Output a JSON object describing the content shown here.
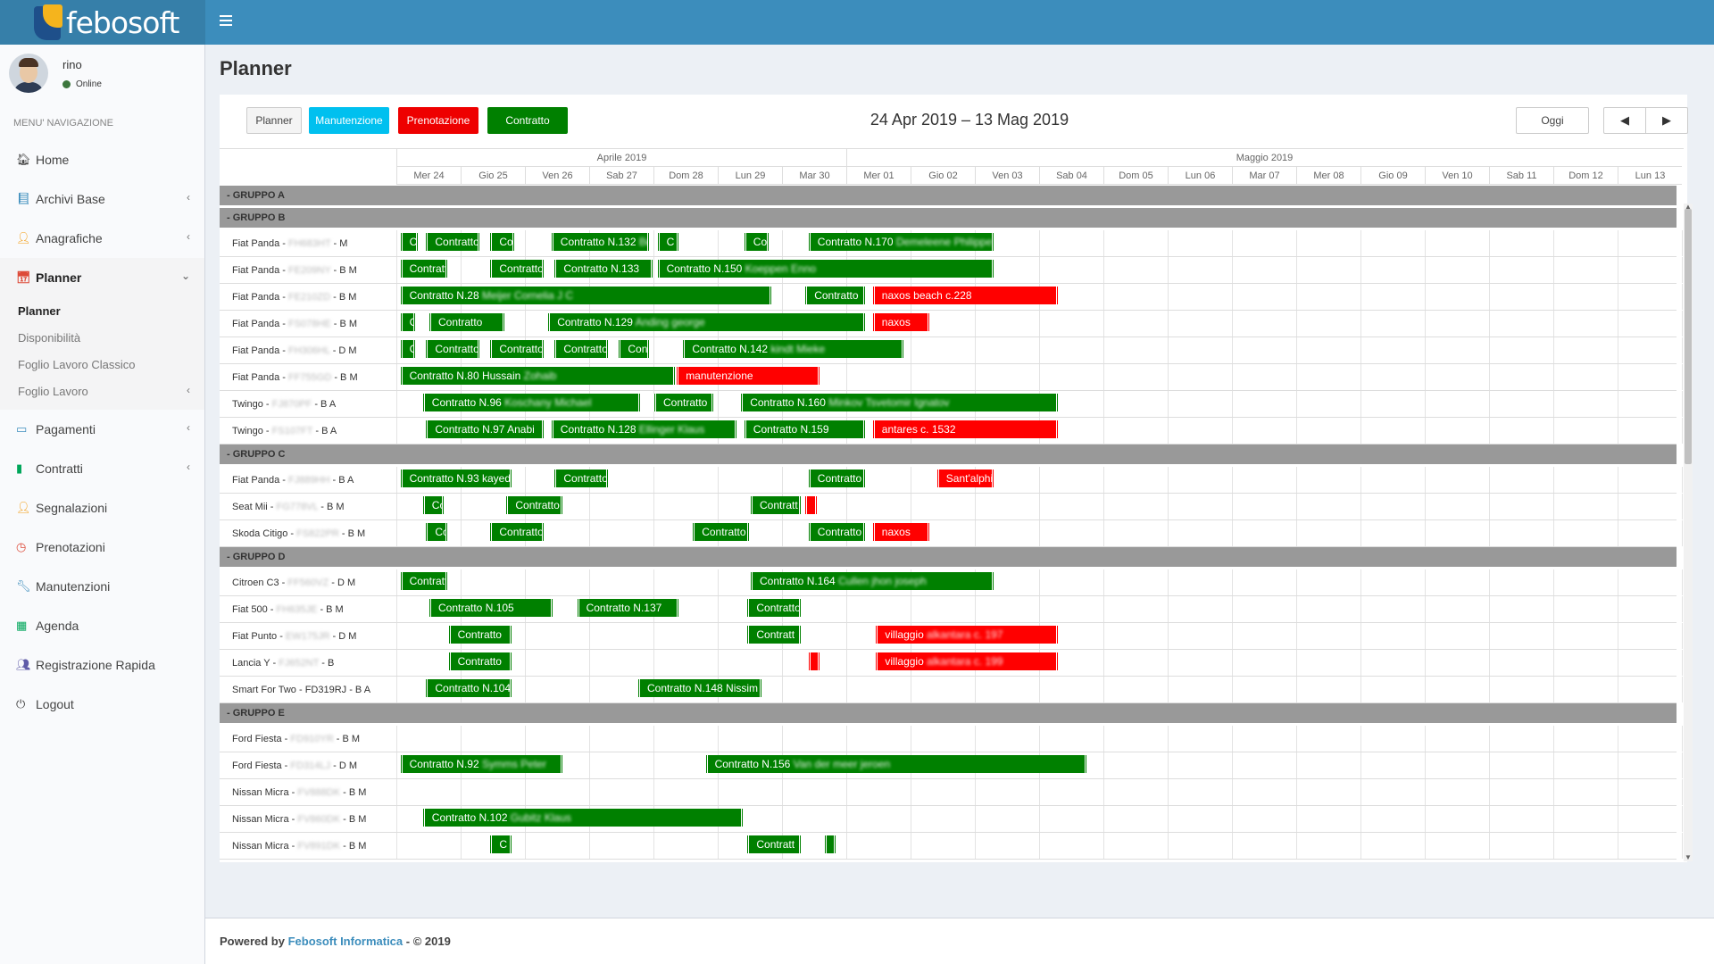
{
  "app": {
    "logo_text": "febosoft"
  },
  "user": {
    "name": "rino",
    "status": "Online"
  },
  "sidebar": {
    "header": "MENU' NAVIGAZIONE",
    "items": [
      {
        "label": "Home",
        "icon": "home-icon",
        "chevron": false
      },
      {
        "label": "Archivi Base",
        "icon": "book-icon",
        "chevron": true
      },
      {
        "label": "Anagrafiche",
        "icon": "user-icon",
        "chevron": true
      },
      {
        "label": "Planner",
        "icon": "calendar-icon",
        "chevron": true,
        "open": true
      },
      {
        "label": "Pagamenti",
        "icon": "credit-card-icon",
        "chevron": true
      },
      {
        "label": "Contratti",
        "icon": "file-icon",
        "chevron": true
      },
      {
        "label": "Segnalazioni",
        "icon": "user-icon",
        "chevron": false
      },
      {
        "label": "Prenotazioni",
        "icon": "clock-icon",
        "chevron": false
      },
      {
        "label": "Manutenzioni",
        "icon": "wrench-icon",
        "chevron": false
      },
      {
        "label": "Agenda",
        "icon": "calendar-grid-icon",
        "chevron": false
      },
      {
        "label": "Registrazione Rapida",
        "icon": "users-icon",
        "chevron": false
      },
      {
        "label": "Logout",
        "icon": "power-icon",
        "chevron": false
      }
    ],
    "planner_submenu": [
      {
        "label": "Planner",
        "active": true,
        "chevron": false
      },
      {
        "label": "Disponibilità",
        "active": false,
        "chevron": false
      },
      {
        "label": "Foglio Lavoro Classico",
        "active": false,
        "chevron": false
      },
      {
        "label": "Foglio Lavoro",
        "active": false,
        "chevron": true
      }
    ]
  },
  "page": {
    "title": "Planner"
  },
  "toolbar": {
    "planner": "Planner",
    "manutenzione": "Manutenzione",
    "prenotazione": "Prenotazione",
    "contratto": "Contratto",
    "range": "24 Apr 2019 – 13 Mag 2019",
    "oggi": "Oggi",
    "prev": "◀",
    "next": "▶"
  },
  "calendar": {
    "months": [
      {
        "label": "Aprile 2019",
        "days": 7
      },
      {
        "label": "Maggio 2019",
        "days": 13
      }
    ],
    "days": [
      "Mer 24",
      "Gio 25",
      "Ven 26",
      "Sab 27",
      "Dom 28",
      "Lun 29",
      "Mar 30",
      "Mer 01",
      "Gio 02",
      "Ven 03",
      "Sab 04",
      "Dom 05",
      "Lun 06",
      "Mar 07",
      "Mer 08",
      "Gio 09",
      "Ven 10",
      "Sab 11",
      "Dom 12",
      "Lun 13"
    ],
    "colors": {
      "contratto": "#008000",
      "prenotazione": "#ff0000",
      "manutenzione": "#00c0ef"
    },
    "rows": [
      {
        "type": "group",
        "label": "- GRUPPO A"
      },
      {
        "type": "group",
        "label": "- GRUPPO B"
      },
      {
        "type": "vehicle",
        "model": "Fiat Panda - ",
        "plate": "FH683HT",
        "suffix": " - M",
        "events": [
          {
            "s": 0.05,
            "e": 0.35,
            "c": "green",
            "text": "C"
          },
          {
            "s": 0.45,
            "e": 1.3,
            "c": "green",
            "text": "Contratto"
          },
          {
            "s": 1.45,
            "e": 1.85,
            "c": "green",
            "text": "Co"
          },
          {
            "s": 2.4,
            "e": 3.95,
            "c": "green",
            "text": "Contratto N.132 ",
            "blur": "Berry"
          },
          {
            "s": 4.05,
            "e": 4.4,
            "c": "green",
            "text": "C"
          },
          {
            "s": 5.4,
            "e": 5.8,
            "c": "green",
            "text": "Co"
          },
          {
            "s": 6.4,
            "e": 9.3,
            "c": "green",
            "text": "Contratto N.170 ",
            "blur": "Demeleene Philippe"
          }
        ]
      },
      {
        "type": "vehicle",
        "model": "Fiat Panda - ",
        "plate": "FE209NY",
        "suffix": " - B M",
        "events": [
          {
            "s": 0.05,
            "e": 0.8,
            "c": "green",
            "text": "Contratt"
          },
          {
            "s": 1.45,
            "e": 2.3,
            "c": "green",
            "text": "Contratto"
          },
          {
            "s": 2.45,
            "e": 4.0,
            "c": "green",
            "text": "Contratto N.133"
          },
          {
            "s": 4.05,
            "e": 9.3,
            "c": "green",
            "text": "Contratto N.150 ",
            "blur": "Koeppen Enno"
          }
        ]
      },
      {
        "type": "vehicle",
        "model": "Fiat Panda - ",
        "plate": "FE210ZD",
        "suffix": " - B M",
        "events": [
          {
            "s": 0.05,
            "e": 5.85,
            "c": "green",
            "text": "Contratto N.28 ",
            "blur": "Meijer Cornelia J C"
          },
          {
            "s": 6.35,
            "e": 7.3,
            "c": "green",
            "text": "Contratto"
          },
          {
            "s": 7.4,
            "e": 10.3,
            "c": "red",
            "text": "naxos beach c.228"
          }
        ]
      },
      {
        "type": "vehicle",
        "model": "Fiat Panda - ",
        "plate": "FS078HE",
        "suffix": " - B M",
        "events": [
          {
            "s": 0.05,
            "e": 0.3,
            "c": "green",
            "text": "C"
          },
          {
            "s": 0.5,
            "e": 1.7,
            "c": "green",
            "text": "Contratto"
          },
          {
            "s": 2.35,
            "e": 7.3,
            "c": "green",
            "text": "Contratto N.129 ",
            "blur": "Anding george"
          },
          {
            "s": 7.4,
            "e": 8.3,
            "c": "red",
            "text": "naxos"
          }
        ]
      },
      {
        "type": "vehicle",
        "model": "Fiat Panda - ",
        "plate": "FH306HL",
        "suffix": " - D M",
        "events": [
          {
            "s": 0.05,
            "e": 0.3,
            "c": "green",
            "text": "C"
          },
          {
            "s": 0.45,
            "e": 1.3,
            "c": "green",
            "text": "Contratto"
          },
          {
            "s": 1.45,
            "e": 2.3,
            "c": "green",
            "text": "Contratto"
          },
          {
            "s": 2.45,
            "e": 3.3,
            "c": "green",
            "text": "Contratto"
          },
          {
            "s": 3.45,
            "e": 3.95,
            "c": "green",
            "text": "Cont"
          },
          {
            "s": 4.45,
            "e": 7.9,
            "c": "green",
            "text": "Contratto N.142 ",
            "blur": "kindt Mieke"
          }
        ]
      },
      {
        "type": "vehicle",
        "model": "Fiat Panda - ",
        "plate": "FF755GD",
        "suffix": " - B M",
        "events": [
          {
            "s": 0.05,
            "e": 4.35,
            "c": "green",
            "text": "Contratto N.80 Hussain ",
            "blur": "Zohaib"
          },
          {
            "s": 4.35,
            "e": 6.6,
            "c": "red",
            "text": "manutenzione"
          }
        ]
      },
      {
        "type": "vehicle",
        "model": "Twingo - ",
        "plate": "FJ870PF",
        "suffix": " - B A",
        "events": [
          {
            "s": 0.4,
            "e": 3.8,
            "c": "green",
            "text": "Contratto N.96 ",
            "blur": "Koschany Michael"
          },
          {
            "s": 4.0,
            "e": 4.95,
            "c": "green",
            "text": "Contratto"
          },
          {
            "s": 5.35,
            "e": 10.3,
            "c": "green",
            "text": "Contratto N.160 ",
            "blur": "Minkov Tsvetomir Ignatov"
          }
        ]
      },
      {
        "type": "vehicle",
        "model": "Twingo - ",
        "plate": "FS107FT",
        "suffix": " - B A",
        "events": [
          {
            "s": 0.45,
            "e": 2.3,
            "c": "green",
            "text": "Contratto N.97 Anabi"
          },
          {
            "s": 2.4,
            "e": 5.3,
            "c": "green",
            "text": "Contratto N.128 ",
            "blur": "Ellinger Klaus"
          },
          {
            "s": 5.4,
            "e": 7.3,
            "c": "green",
            "text": "Contratto N.159"
          },
          {
            "s": 7.4,
            "e": 10.3,
            "c": "red",
            "text": "antares c. 1532"
          }
        ]
      },
      {
        "type": "group",
        "label": "- GRUPPO C"
      },
      {
        "type": "vehicle",
        "model": "Fiat Panda - ",
        "plate": "FJ889HH",
        "suffix": " - B A",
        "events": [
          {
            "s": 0.05,
            "e": 1.8,
            "c": "green",
            "text": "Contratto N.93 kayed"
          },
          {
            "s": 2.45,
            "e": 3.3,
            "c": "green",
            "text": "Contratto"
          },
          {
            "s": 6.4,
            "e": 7.3,
            "c": "green",
            "text": "Contratto"
          },
          {
            "s": 8.4,
            "e": 9.3,
            "c": "red",
            "text": "Sant'alphi"
          }
        ]
      },
      {
        "type": "vehicle",
        "model": "Seat Mii - ",
        "plate": "FG778VL",
        "suffix": " - B M",
        "events": [
          {
            "s": 0.4,
            "e": 0.75,
            "c": "green",
            "text": "Co"
          },
          {
            "s": 1.7,
            "e": 2.6,
            "c": "green",
            "text": "Contratto"
          },
          {
            "s": 5.5,
            "e": 6.3,
            "c": "green",
            "text": "Contratt"
          },
          {
            "s": 6.35,
            "e": 6.55,
            "c": "red",
            "text": ""
          }
        ]
      },
      {
        "type": "vehicle",
        "model": "Skoda Citigo - ",
        "plate": "FS822PR",
        "suffix": " - B M",
        "events": [
          {
            "s": 0.45,
            "e": 0.8,
            "c": "green",
            "text": "Co"
          },
          {
            "s": 1.45,
            "e": 2.3,
            "c": "green",
            "text": "Contratto"
          },
          {
            "s": 4.6,
            "e": 5.5,
            "c": "green",
            "text": "Contratto"
          },
          {
            "s": 6.4,
            "e": 7.3,
            "c": "green",
            "text": "Contratto"
          },
          {
            "s": 7.4,
            "e": 8.3,
            "c": "red",
            "text": "naxos"
          }
        ]
      },
      {
        "type": "group",
        "label": "- GRUPPO D"
      },
      {
        "type": "vehicle",
        "model": "Citroen C3 - ",
        "plate": "FF560VZ",
        "suffix": " - D M",
        "events": [
          {
            "s": 0.05,
            "e": 0.8,
            "c": "green",
            "text": "Contratt"
          },
          {
            "s": 5.5,
            "e": 9.3,
            "c": "green",
            "text": "Contratto N.164 ",
            "blur": "Cullen jhon joseph"
          }
        ]
      },
      {
        "type": "vehicle",
        "model": "Fiat 500 - ",
        "plate": "FH635JE",
        "suffix": " - B M",
        "events": [
          {
            "s": 0.5,
            "e": 2.45,
            "c": "green",
            "text": "Contratto N.105"
          },
          {
            "s": 2.8,
            "e": 4.4,
            "c": "green",
            "text": "Contratto N.137"
          },
          {
            "s": 5.45,
            "e": 6.3,
            "c": "green",
            "text": "Contratto"
          }
        ]
      },
      {
        "type": "vehicle",
        "model": "Fiat Punto - ",
        "plate": "EW175JR",
        "suffix": " - D M",
        "events": [
          {
            "s": 0.8,
            "e": 1.8,
            "c": "green",
            "text": "Contratto"
          },
          {
            "s": 5.45,
            "e": 6.3,
            "c": "green",
            "text": "Contratt"
          },
          {
            "s": 7.45,
            "e": 10.3,
            "c": "red",
            "text": "villaggio ",
            "blur": "alkantara c. 197"
          }
        ]
      },
      {
        "type": "vehicle",
        "model": "Lancia Y - ",
        "plate": "FJ652NT",
        "suffix": " - B",
        "events": [
          {
            "s": 0.8,
            "e": 1.8,
            "c": "green",
            "text": "Contratto"
          },
          {
            "s": 6.4,
            "e": 6.6,
            "c": "red",
            "text": ""
          },
          {
            "s": 7.45,
            "e": 10.3,
            "c": "red",
            "text": "villaggio ",
            "blur": "alkantara c. 199"
          }
        ]
      },
      {
        "type": "vehicle",
        "model": "Smart For Two - FD319RJ - B A",
        "plate": "",
        "suffix": "",
        "events": [
          {
            "s": 0.45,
            "e": 1.8,
            "c": "green",
            "text": "Contratto N.104"
          },
          {
            "s": 3.75,
            "e": 5.7,
            "c": "green",
            "text": "Contratto N.148 Nissim"
          }
        ]
      },
      {
        "type": "group",
        "label": "- GRUPPO E"
      },
      {
        "type": "vehicle",
        "model": "Ford Fiesta - ",
        "plate": "FD910YR",
        "suffix": " - B M",
        "events": []
      },
      {
        "type": "vehicle",
        "model": "Ford Fiesta - ",
        "plate": "FD314LJ",
        "suffix": " - D M",
        "events": [
          {
            "s": 0.05,
            "e": 2.6,
            "c": "green",
            "text": "Contratto N.92 ",
            "blur": "Symms Peter"
          },
          {
            "s": 4.8,
            "e": 10.75,
            "c": "green",
            "text": "Contratto N.156 ",
            "blur": "Van der meer jeroen"
          }
        ]
      },
      {
        "type": "vehicle",
        "model": "Nissan Micra - ",
        "plate": "FV888DK",
        "suffix": " - B M",
        "events": []
      },
      {
        "type": "vehicle",
        "model": "Nissan Micra - ",
        "plate": "FV860DK",
        "suffix": " - B M",
        "events": [
          {
            "s": 0.4,
            "e": 5.4,
            "c": "green",
            "text": "Contratto N.102 ",
            "blur": "Gubitz Klaus"
          }
        ]
      },
      {
        "type": "vehicle",
        "model": "Nissan Micra - ",
        "plate": "FV891DK",
        "suffix": " - B M",
        "events": [
          {
            "s": 1.45,
            "e": 1.8,
            "c": "green",
            "text": "C"
          },
          {
            "s": 5.45,
            "e": 6.3,
            "c": "green",
            "text": "Contratt"
          },
          {
            "s": 6.65,
            "e": 6.85,
            "c": "green",
            "text": ""
          }
        ]
      }
    ]
  },
  "footer": {
    "prefix": "Powered by ",
    "company": "Febosoft Informatica",
    "suffix": " - © 2019"
  }
}
